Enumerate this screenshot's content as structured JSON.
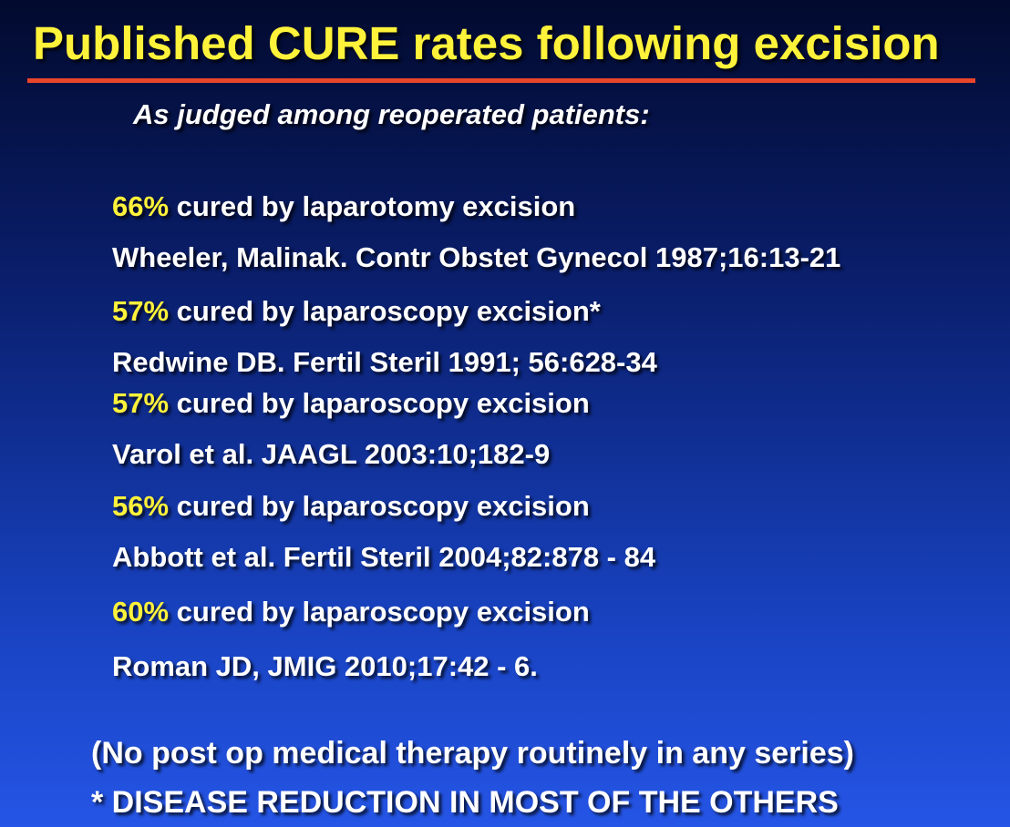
{
  "slide": {
    "title": "Published CURE rates following excision",
    "subtitle": "As judged among reoperated patients:",
    "entries": [
      {
        "percent": "66%",
        "text": " cured by laparotomy excision",
        "citation": "Wheeler, Malinak. Contr Obstet Gynecol 1987;16:13-21"
      },
      {
        "percent": "57%",
        "text": " cured by laparoscopy excision*",
        "citation": "Redwine DB. Fertil Steril 1991; 56:628-34"
      },
      {
        "percent": "57%",
        "text": " cured by laparoscopy excision",
        "citation": "Varol et al. JAAGL 2003:10;182-9"
      },
      {
        "percent": "56%",
        "text": " cured by laparoscopy excision",
        "citation": "Abbott et al. Fertil Steril 2004;82:878 - 84"
      },
      {
        "percent": "60%",
        "text": " cured by laparoscopy excision",
        "citation": "Roman JD, JMIG 2010;17:42 - 6."
      }
    ],
    "footer_note": "(No post op medical therapy routinely in any series)",
    "footer_disclaimer": "* DISEASE REDUCTION IN MOST OF THE OTHERS"
  },
  "colors": {
    "title": "#fff23a",
    "percent": "#fff23a",
    "rule": "#e8452b",
    "text": "#ffffff"
  }
}
